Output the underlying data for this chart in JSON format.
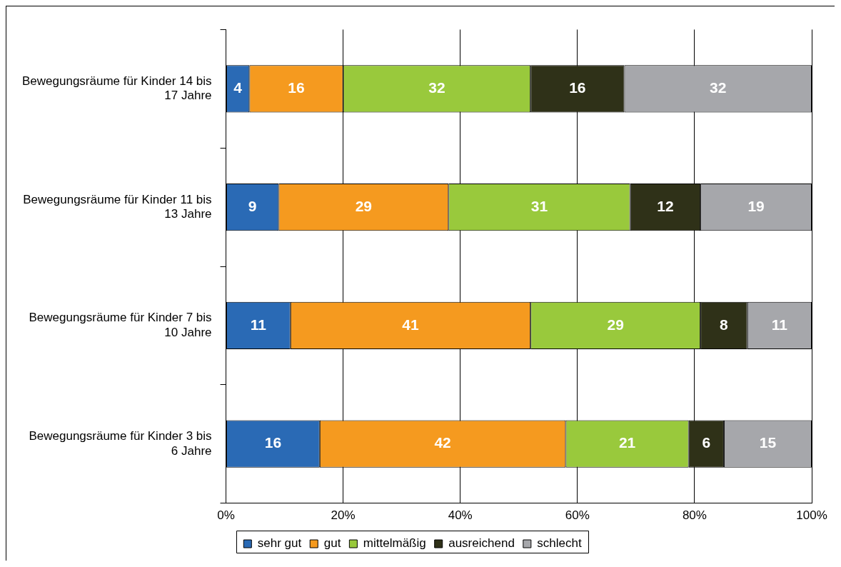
{
  "chart_data": {
    "type": "bar",
    "orientation": "horizontal",
    "stacked": true,
    "categories": [
      "Bewegungsräume für Kinder 14 bis 17 Jahre",
      "Bewegungsräume für Kinder 11 bis 13 Jahre",
      "Bewegungsräume für Kinder 7 bis 10 Jahre",
      "Bewegungsräume für Kinder 3 bis 6 Jahre"
    ],
    "series": [
      {
        "name": "sehr gut",
        "color": "#2a6ab5",
        "values": [
          4,
          9,
          11,
          16
        ]
      },
      {
        "name": "gut",
        "color": "#f59a1f",
        "values": [
          16,
          29,
          41,
          42
        ]
      },
      {
        "name": "mittelmäßig",
        "color": "#99c93c",
        "values": [
          32,
          31,
          29,
          21
        ]
      },
      {
        "name": "ausreichend",
        "color": "#2f3118",
        "values": [
          16,
          12,
          8,
          6
        ]
      },
      {
        "name": "schlecht",
        "color": "#a6a7ab",
        "values": [
          32,
          19,
          11,
          15
        ]
      }
    ],
    "xlim": [
      0,
      100
    ],
    "xticks": [
      {
        "value": 0,
        "label": "0%"
      },
      {
        "value": 20,
        "label": "20%"
      },
      {
        "value": 40,
        "label": "40%"
      },
      {
        "value": 60,
        "label": "60%"
      },
      {
        "value": 80,
        "label": "80%"
      },
      {
        "value": 100,
        "label": "100%"
      }
    ],
    "grid": "x",
    "legend": "bottom",
    "data_labels": true
  }
}
